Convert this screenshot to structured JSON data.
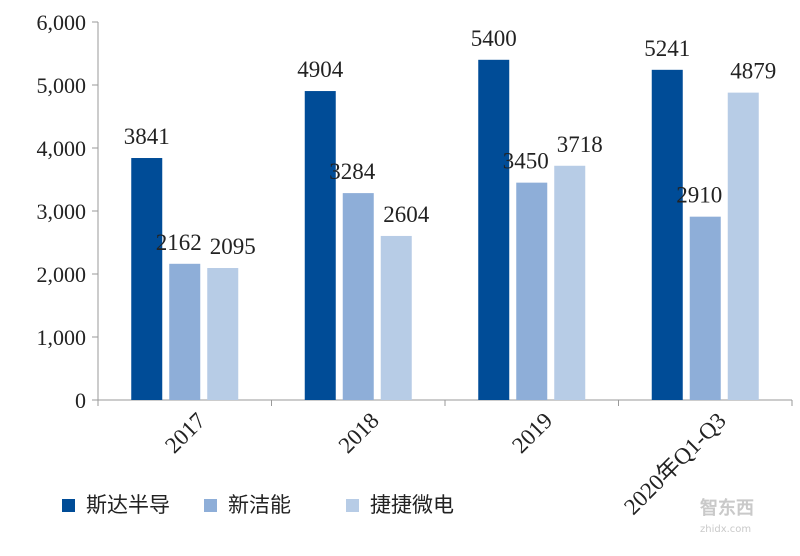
{
  "chart_data": {
    "type": "bar",
    "categories": [
      "2017",
      "2018",
      "2019",
      "2020年Q1-Q3"
    ],
    "series": [
      {
        "name": "斯达半导",
        "values": [
          3841,
          4904,
          5400,
          5241
        ],
        "color": "#004c97"
      },
      {
        "name": "新洁能",
        "values": [
          2162,
          3284,
          3450,
          2910
        ],
        "color": "#8eaed8"
      },
      {
        "name": "捷捷微电",
        "values": [
          2095,
          2604,
          3718,
          4879
        ],
        "color": "#b7cce6"
      }
    ],
    "ylim": [
      0,
      6000
    ],
    "yticks": [
      0,
      1000,
      2000,
      3000,
      4000,
      5000,
      6000
    ],
    "ytick_labels": [
      "0",
      "1,000",
      "2,000",
      "3,000",
      "4,000",
      "5,000",
      "6,000"
    ],
    "data_labels": [
      [
        "3841",
        "4904",
        "5400",
        "5241"
      ],
      [
        "2162",
        "3284",
        "3450",
        "2910"
      ],
      [
        "2095",
        "2604",
        "3718",
        "4879"
      ]
    ],
    "legend_position": "bottom-left",
    "grid": false,
    "title": "",
    "xlabel": "",
    "ylabel": ""
  },
  "watermark": {
    "text": "智东西",
    "subtext": "zhidx.com"
  }
}
